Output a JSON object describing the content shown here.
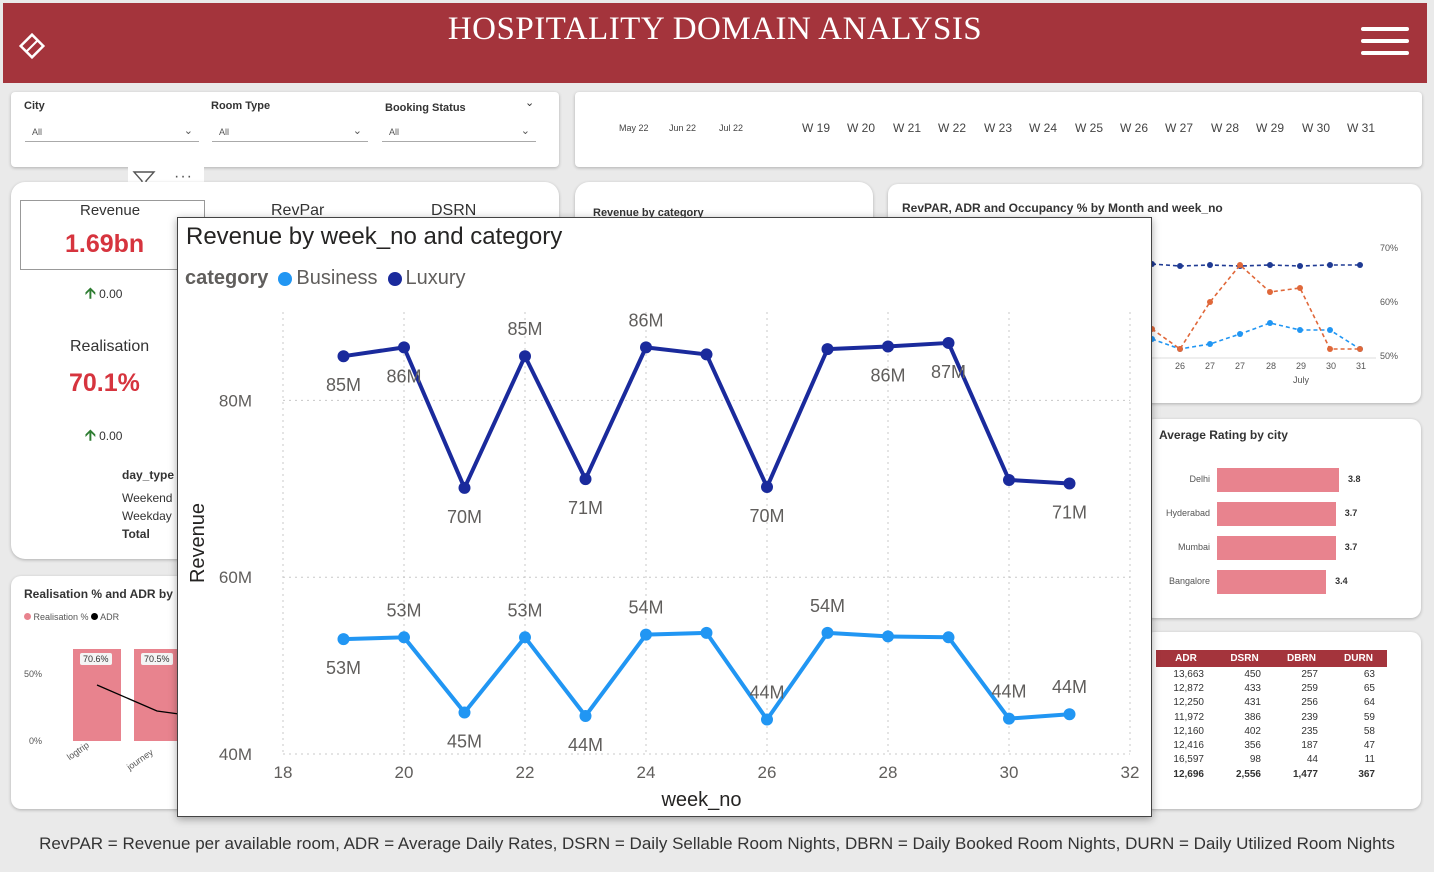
{
  "header": {
    "title": "HOSPITALITY DOMAIN ANALYSIS"
  },
  "slicers": {
    "city": {
      "label": "City",
      "value": "All"
    },
    "room_type": {
      "label": "Room Type",
      "value": "All"
    },
    "booking_status": {
      "label": "Booking Status",
      "value": "All"
    }
  },
  "timeline": {
    "months": [
      "May 22",
      "Jun 22",
      "Jul 22"
    ],
    "weeks": [
      "W 19",
      "W 20",
      "W 21",
      "W 22",
      "W 23",
      "W 24",
      "W 25",
      "W 26",
      "W 27",
      "W 28",
      "W 29",
      "W 30",
      "W 31"
    ]
  },
  "kpis": {
    "revenue": {
      "label": "Revenue",
      "value": "1.69bn",
      "delta": "0.00"
    },
    "revpar": {
      "label": "RevPar"
    },
    "dsrn": {
      "label": "DSRN"
    },
    "realisation": {
      "label": "Realisation",
      "value": "70.1%",
      "delta": "0.00"
    }
  },
  "day_type": {
    "header": "day_type",
    "rows": [
      "Weekend",
      "Weekday",
      "Total"
    ]
  },
  "realisation_adr": {
    "title": "Realisation % and ADR by",
    "legend": [
      "Realisation %",
      "ADR"
    ],
    "yticks": [
      "50%",
      "0%"
    ],
    "bars": [
      {
        "label": "70.6%",
        "category": "logtrip"
      },
      {
        "label": "70.5%",
        "category": "journey"
      }
    ]
  },
  "revenue_by_category_title": "Revenue by category",
  "revpar_chart": {
    "title": "RevPAR, ADR and Occupancy % by Month and week_no",
    "yticks": [
      "70%",
      "60%",
      "50%"
    ],
    "xticks": [
      "26",
      "27",
      "27",
      "28",
      "29",
      "30",
      "31"
    ],
    "month_label": "July",
    "colors": {
      "revpar": "#1f3a93",
      "adr": "#e0683a",
      "occupancy": "#2196f3"
    }
  },
  "rating": {
    "title": "Average Rating by city",
    "cities": [
      "Delhi",
      "Hyderabad",
      "Mumbai",
      "Bangalore"
    ],
    "values": [
      3.8,
      3.7,
      3.7,
      3.4
    ],
    "labels": [
      "3.8",
      "3.7",
      "3.7",
      "3.4"
    ],
    "color": "#e8838e"
  },
  "metrics_table": {
    "headers": [
      "ADR",
      "DSRN",
      "DBRN",
      "DURN"
    ],
    "rows": [
      [
        "13,663",
        "450",
        "257",
        "63"
      ],
      [
        "12,872",
        "433",
        "259",
        "65"
      ],
      [
        "12,250",
        "431",
        "256",
        "64"
      ],
      [
        "11,972",
        "386",
        "239",
        "59"
      ],
      [
        "12,160",
        "402",
        "235",
        "58"
      ],
      [
        "12,416",
        "356",
        "187",
        "47"
      ],
      [
        "16,597",
        "98",
        "44",
        "11"
      ]
    ],
    "total": [
      "12,696",
      "2,556",
      "1,477",
      "367"
    ]
  },
  "popup": {
    "title": "Revenue by week_no and category",
    "legend_title": "category",
    "legend": [
      "Business",
      "Luxury"
    ]
  },
  "chart_data": {
    "type": "line",
    "title": "Revenue by week_no and category",
    "xlabel": "week_no",
    "ylabel": "Revenue",
    "xlim": [
      18,
      32
    ],
    "ylim": [
      40,
      90
    ],
    "xticks": [
      18,
      20,
      22,
      24,
      26,
      28,
      30,
      32
    ],
    "yticks": [
      40,
      60,
      80
    ],
    "ytick_labels": [
      "40M",
      "60M",
      "80M"
    ],
    "grid": true,
    "legend_position": "top-left",
    "x": [
      19,
      20,
      21,
      22,
      23,
      24,
      25,
      26,
      27,
      28,
      29,
      30,
      31
    ],
    "series": [
      {
        "name": "Luxury",
        "color": "#1a2a9c",
        "values": [
          85.0,
          86.0,
          70.1,
          85.0,
          71.1,
          86.0,
          85.2,
          70.2,
          85.8,
          86.1,
          86.5,
          71.0,
          70.6
        ],
        "labels": [
          "85M",
          "86M",
          "70M",
          "85M",
          "71M",
          "86M",
          "",
          "70M",
          "",
          "86M",
          "87M",
          "",
          "71M"
        ],
        "label_pos": [
          "below",
          "below",
          "below",
          "above",
          "below",
          "above",
          "",
          "below",
          "",
          "below",
          "below",
          "",
          "below"
        ]
      },
      {
        "name": "Business",
        "color": "#2196f3",
        "values": [
          53.0,
          53.2,
          44.7,
          53.2,
          44.3,
          53.5,
          53.7,
          43.9,
          53.7,
          53.3,
          53.2,
          44.0,
          44.5
        ],
        "labels": [
          "53M",
          "53M",
          "45M",
          "53M",
          "44M",
          "54M",
          "",
          "44M",
          "54M",
          "",
          "",
          "44M",
          "44M"
        ],
        "label_pos": [
          "below",
          "above",
          "below",
          "above",
          "below",
          "above",
          "",
          "above",
          "above",
          "",
          "",
          "above",
          "above"
        ]
      }
    ]
  },
  "footer": "RevPAR = Revenue per available room, ADR = Average Daily Rates, DSRN = Daily Sellable Room Nights, DBRN = Daily Booked Room Nights, DURN = Daily Utilized Room Nights"
}
